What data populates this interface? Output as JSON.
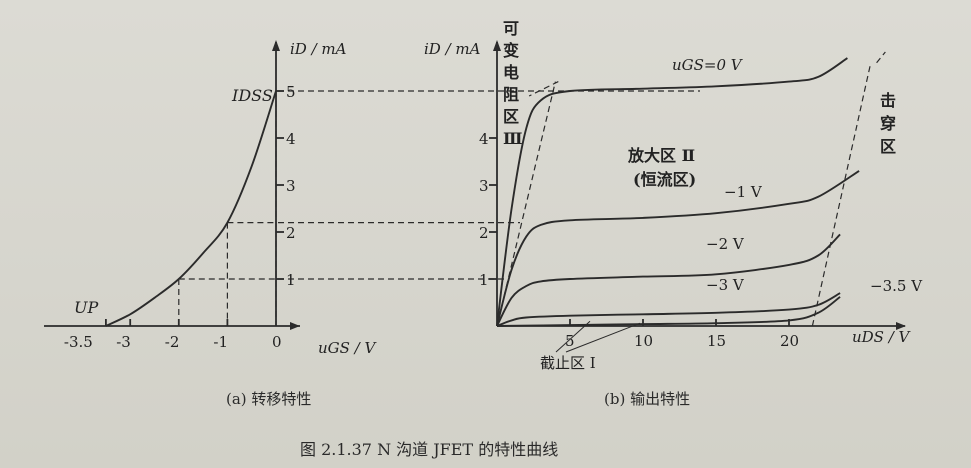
{
  "figure": {
    "caption": "图 2.1.37   N 沟道 JFET 的特性曲线",
    "sub_a": "(a) 转移特性",
    "sub_b": "(b) 输出特性"
  },
  "chart_data": [
    {
      "type": "line",
      "title": "",
      "xlabel": "uGS / V",
      "ylabel": "iD / mA",
      "x_ticks": [
        "-3.5",
        "-3",
        "-2",
        "-1",
        "0"
      ],
      "y_ticks": [
        "1",
        "2",
        "3",
        "4",
        "5"
      ],
      "xlim": [
        -4.0,
        0
      ],
      "ylim": [
        0,
        5.5
      ],
      "annotations": {
        "idss": "IDSS",
        "up": "UP"
      },
      "series": [
        {
          "x": [
            -3.5,
            -3.0,
            -2.5,
            -2.0,
            -1.5,
            -1.0,
            -0.5,
            0
          ],
          "y": [
            0,
            0.25,
            0.6,
            1.0,
            1.55,
            2.2,
            3.4,
            5.0
          ]
        }
      ],
      "guides": [
        {
          "x": -2.0,
          "y": 1.0
        },
        {
          "x": -1.0,
          "y": 2.2
        },
        {
          "x": 0,
          "y": 5.0
        }
      ]
    },
    {
      "type": "line",
      "title": "",
      "xlabel": "uDS / V",
      "ylabel": "iD / mA",
      "x_ticks": [
        "5",
        "10",
        "15",
        "20"
      ],
      "y_ticks": [
        "1",
        "2",
        "3",
        "4"
      ],
      "xlim": [
        0,
        26
      ],
      "ylim": [
        0,
        5.5
      ],
      "regions": {
        "variable_resistance": [
          "可",
          "变",
          "电",
          "阻",
          "区",
          "Ⅲ"
        ],
        "amplification": "放大区 Ⅱ",
        "constant_current": "(恒流区)",
        "breakdown": [
          "击",
          "穿",
          "区"
        ],
        "cutoff": "截止区 Ⅰ"
      },
      "series": [
        {
          "name": "uGS=0 V",
          "x": [
            0,
            1,
            2,
            3,
            5,
            10,
            15,
            20,
            22,
            24
          ],
          "y": [
            0,
            2.5,
            4.2,
            4.8,
            5.0,
            5.05,
            5.1,
            5.2,
            5.3,
            5.7
          ]
        },
        {
          "name": "−1 V",
          "x": [
            0,
            1,
            2,
            3,
            5,
            10,
            15,
            20,
            22,
            24.8
          ],
          "y": [
            0,
            1.2,
            1.9,
            2.15,
            2.25,
            2.3,
            2.4,
            2.6,
            2.75,
            3.3
          ]
        },
        {
          "name": "−2 V",
          "x": [
            0,
            1,
            2,
            3,
            5,
            10,
            15,
            20,
            22,
            23.5
          ],
          "y": [
            0,
            0.6,
            0.85,
            0.95,
            1.0,
            1.05,
            1.1,
            1.3,
            1.5,
            1.95
          ]
        },
        {
          "name": "−3 V",
          "x": [
            0,
            1,
            2,
            5,
            10,
            15,
            20,
            22,
            23.5
          ],
          "y": [
            0,
            0.12,
            0.18,
            0.22,
            0.25,
            0.28,
            0.35,
            0.45,
            0.7
          ]
        },
        {
          "name": "−3.5 V",
          "x": [
            0,
            5,
            10,
            15,
            20,
            22,
            23.5
          ],
          "y": [
            0,
            0.02,
            0.04,
            0.06,
            0.12,
            0.28,
            0.62
          ]
        }
      ],
      "boundaries": {
        "pinch_off_x": [
          0,
          1,
          2,
          3,
          4
        ],
        "breakdown_x": [
          21.6,
          22.6,
          23.6,
          24.6,
          25.6
        ]
      }
    }
  ]
}
